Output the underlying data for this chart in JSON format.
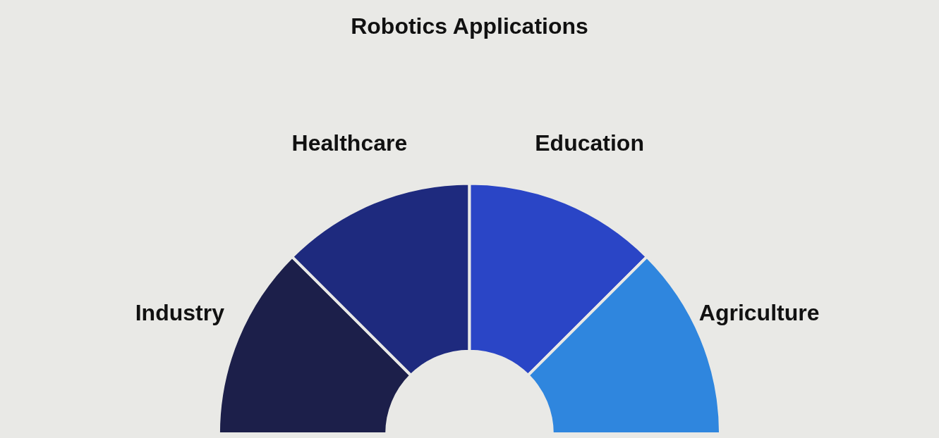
{
  "chart_data": {
    "type": "donut",
    "title": "Robotics Applications",
    "categories": [
      "Industry",
      "Healthcare",
      "Education",
      "Agriculture"
    ],
    "values": [
      25,
      25,
      25,
      25
    ],
    "colors": [
      "#1c1f4a",
      "#1e2a7e",
      "#2a45c6",
      "#2f86de"
    ],
    "legend": false
  }
}
